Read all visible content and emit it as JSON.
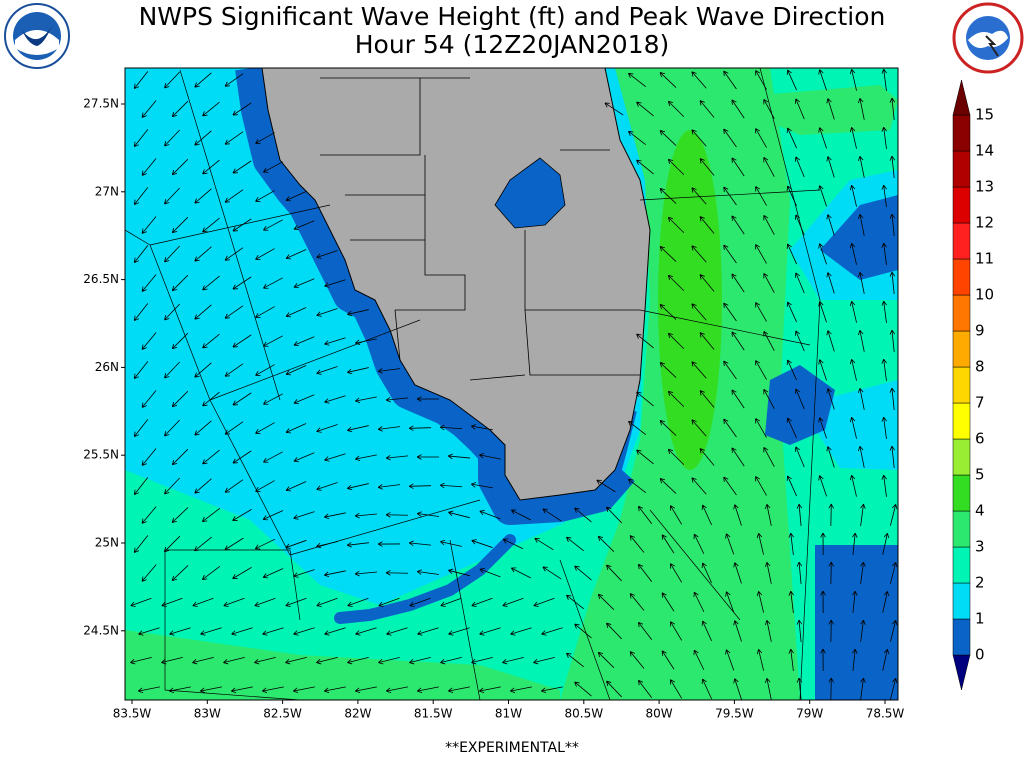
{
  "header": {
    "title": "NWPS Significant Wave Height (ft) and Peak Wave Direction",
    "subtitle": "Hour 54 (12Z20JAN2018)"
  },
  "map": {
    "lat_labels": [
      "27.5N",
      "27N",
      "26.5N",
      "26N",
      "25.5N",
      "25N",
      "24.5N"
    ],
    "lon_labels": [
      "83.5W",
      "83W",
      "82.5W",
      "82W",
      "81.5W",
      "81W",
      "80.5W",
      "80W",
      "79.5W",
      "79W",
      "78.5W"
    ]
  },
  "colorbar": {
    "levels": [
      0,
      1,
      2,
      3,
      4,
      5,
      6,
      7,
      8,
      9,
      10,
      11,
      12,
      13,
      14,
      15
    ],
    "segment_colors": [
      "#0a64c8",
      "#00dcf5",
      "#00f5b4",
      "#2de86e",
      "#33dd22",
      "#99ee33",
      "#ffff00",
      "#ffd700",
      "#ffaa00",
      "#ff7700",
      "#ff4400",
      "#ff2020",
      "#dd0000",
      "#b00000",
      "#8b0000"
    ],
    "under_color": "#00007f",
    "over_color": "#6b0000"
  },
  "footer": "**EXPERIMENTAL**"
}
